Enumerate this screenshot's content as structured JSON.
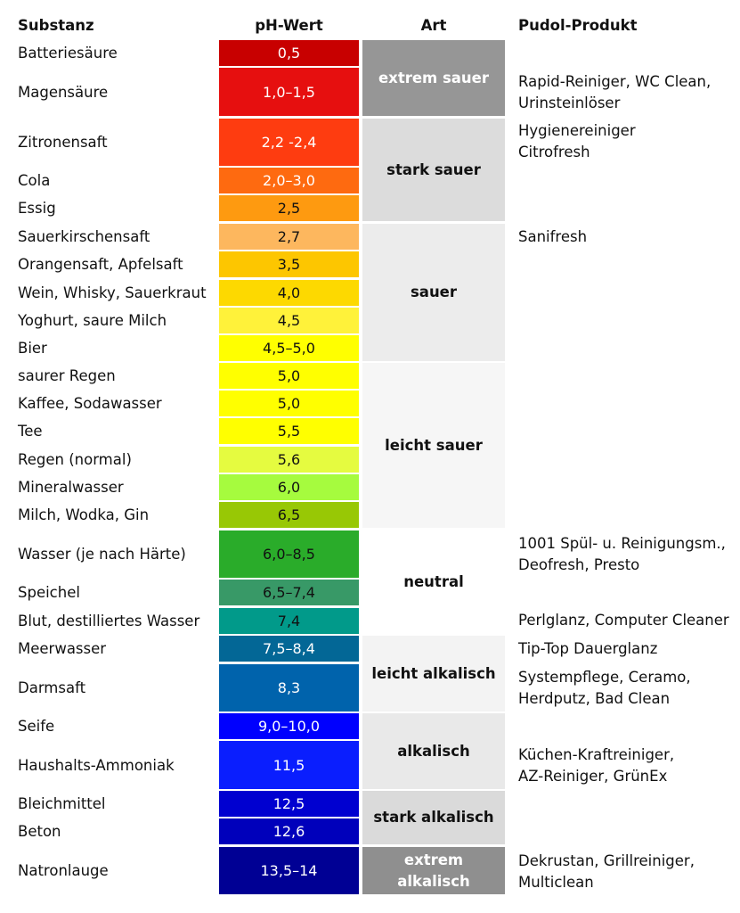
{
  "headers": {
    "substance": "Substanz",
    "ph": "pH-Wert",
    "type": "Art",
    "product": "Pudol-Produkt"
  },
  "rows": [
    {
      "substance": "Batteriesäure",
      "ph": "0,5",
      "color": "#c80000",
      "text": "light"
    },
    {
      "substance": "Magensäure",
      "ph": "1,0–1,5",
      "color": "#e60f0f",
      "text": "light"
    },
    {
      "substance": "Zitronensaft",
      "ph": "2,2 -2,4",
      "color": "#fe3c10",
      "text": "light"
    },
    {
      "substance": "Cola",
      "ph": "2,0–3,0",
      "color": "#fe6a10",
      "text": "light"
    },
    {
      "substance": "Essig",
      "ph": "2,5",
      "color": "#fe9a10",
      "text": "dark"
    },
    {
      "substance": "Sauerkirschensaft",
      "ph": "2,7",
      "color": "#fdb75e",
      "text": "dark"
    },
    {
      "substance": "Orangensaft, Apfelsaft",
      "ph": "3,5",
      "color": "#fdc600",
      "text": "dark"
    },
    {
      "substance": "Wein, Whisky, Sauerkraut",
      "ph": "4,0",
      "color": "#fdd900",
      "text": "dark"
    },
    {
      "substance": "Yoghurt, saure Milch",
      "ph": "4,5",
      "color": "#fff23a",
      "text": "dark"
    },
    {
      "substance": "Bier",
      "ph": "4,5–5,0",
      "color": "#ffff00",
      "text": "dark"
    },
    {
      "substance": "saurer Regen",
      "ph": "5,0",
      "color": "#ffff00",
      "text": "dark"
    },
    {
      "substance": "Kaffee, Sodawasser",
      "ph": "5,0",
      "color": "#ffff00",
      "text": "dark"
    },
    {
      "substance": "Tee",
      "ph": "5,5",
      "color": "#ffff00",
      "text": "dark"
    },
    {
      "substance": "Regen (normal)",
      "ph": "5,6",
      "color": "#e5fb40",
      "text": "dark"
    },
    {
      "substance": "Mineralwasser",
      "ph": "6,0",
      "color": "#a6fb3e",
      "text": "dark"
    },
    {
      "substance": "Milch, Wodka, Gin",
      "ph": "6,5",
      "color": "#98c805",
      "text": "dark"
    },
    {
      "substance": "Wasser (je nach Härte)",
      "ph": "6,0–8,5",
      "color": "#2aac2a",
      "text": "dark"
    },
    {
      "substance": "Speichel",
      "ph": "6,5–7,4",
      "color": "#389967",
      "text": "dark"
    },
    {
      "substance": "Blut, destilliertes Wasser",
      "ph": "7,4",
      "color": "#019a8a",
      "text": "dark"
    },
    {
      "substance": "Meerwasser",
      "ph": "7,5–8,4",
      "color": "#036796",
      "text": "light"
    },
    {
      "substance": "Darmsaft",
      "ph": "8,3",
      "color": "#0063ac",
      "text": "light"
    },
    {
      "substance": "Seife",
      "ph": "9,0–10,0",
      "color": "#0000fe",
      "text": "light"
    },
    {
      "substance": "Haushalts-Ammoniak",
      "ph": "11,5",
      "color": "#0a1efe",
      "text": "light"
    },
    {
      "substance": "Bleichmittel",
      "ph": "12,5",
      "color": "#0000d0",
      "text": "light"
    },
    {
      "substance": "Beton",
      "ph": "12,6",
      "color": "#0000bb",
      "text": "light"
    },
    {
      "substance": "Natronlauge",
      "ph": "13,5–14",
      "color": "#000094",
      "text": "light"
    }
  ],
  "categories": [
    {
      "label": "extrem sauer",
      "bg": "#969696",
      "fg": "#ffffff"
    },
    {
      "label": "stark sauer",
      "bg": "#dcdcdc",
      "fg": "#111111"
    },
    {
      "label": "sauer",
      "bg": "#ececec",
      "fg": "#111111"
    },
    {
      "label": "leicht sauer",
      "bg": "#f6f6f6",
      "fg": "#111111"
    },
    {
      "label": "neutral",
      "bg": "#ffffff",
      "fg": "#111111"
    },
    {
      "label": "leicht alkalisch",
      "bg": "#f3f3f3",
      "fg": "#111111"
    },
    {
      "label": "alkalisch",
      "bg": "#e9e9e9",
      "fg": "#111111"
    },
    {
      "label": "stark alkalisch",
      "bg": "#dadada",
      "fg": "#111111"
    },
    {
      "label": "extrem alkalisch",
      "bg": "#8f8f8f",
      "fg": "#ffffff"
    }
  ],
  "products": [
    {
      "lines": [
        "Rapid-Reiniger, WC Clean,",
        "Urinsteinlöser"
      ]
    },
    {
      "lines": [
        "Hygienereiniger",
        "Citrofresh"
      ]
    },
    {
      "lines": [
        "Sanifresh"
      ]
    },
    {
      "lines": [
        "1001 Spül- u. Reinigungsm.,",
        "Deofresh, Presto"
      ]
    },
    {
      "lines": [
        "Perlglanz, Computer Cleaner"
      ]
    },
    {
      "lines": [
        "Tip-Top Dauerglanz"
      ]
    },
    {
      "lines": [
        "Systempflege, Ceramo,",
        "Herdputz, Bad Clean"
      ]
    },
    {
      "lines": [
        "Küchen-Kraftreiniger,",
        "AZ-Reiniger, GrünEx"
      ]
    },
    {
      "lines": [
        "Dekrustan, Grillreiniger,",
        "Multiclean"
      ]
    }
  ]
}
